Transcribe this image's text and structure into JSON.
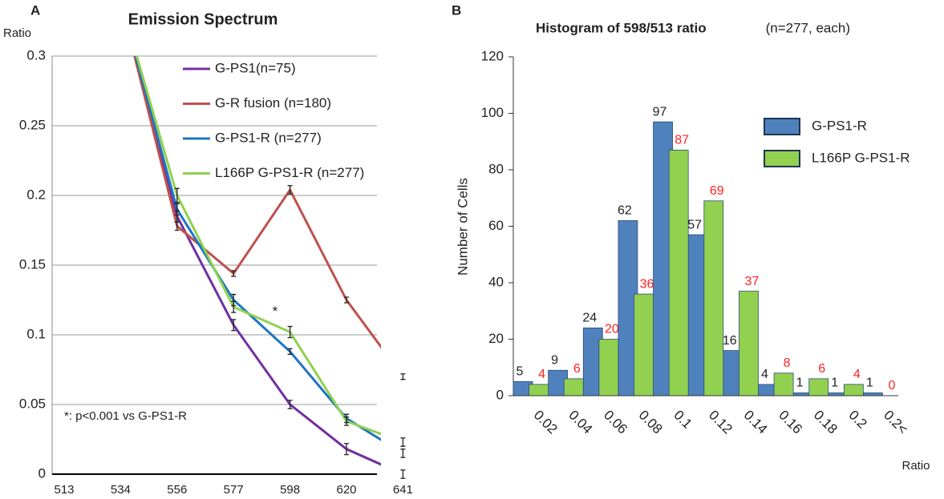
{
  "chart_data": [
    {
      "type": "line",
      "panel": "A",
      "title": "Emission Spectrum",
      "y_label": "Ratio",
      "categories": [
        "513",
        "534",
        "556",
        "577",
        "598",
        "620",
        "641"
      ],
      "ylim": [
        0,
        0.3
      ],
      "yticks": [
        0,
        0.05,
        0.1,
        0.15,
        0.2,
        0.25,
        0.3
      ],
      "grid": true,
      "legend": "upper right",
      "series": [
        {
          "name": "G-PS1(n=75)",
          "color": "#7030a0",
          "values": [
            null,
            0.34,
            0.185,
            0.107,
            0.05,
            0.018,
            0.0
          ],
          "errors": [
            null,
            null,
            0.004,
            0.004,
            0.003,
            0.004,
            0.003
          ]
        },
        {
          "name": "G-R fusion (n=180)",
          "color": "#c0504d",
          "values": [
            null,
            0.34,
            0.178,
            0.144,
            0.204,
            0.125,
            0.07
          ],
          "errors": [
            null,
            null,
            0.003,
            0.002,
            0.003,
            0.002,
            0.002
          ]
        },
        {
          "name": "G-PS1-R (n=277)",
          "color": "#1f74c4",
          "values": [
            null,
            0.34,
            0.19,
            0.125,
            0.088,
            0.04,
            0.015
          ],
          "errors": [
            null,
            null,
            0.004,
            0.004,
            0.002,
            0.003,
            0.003
          ]
        },
        {
          "name": "L166P G-PS1-R (n=277)",
          "color": "#8fd14f",
          "values": [
            null,
            0.34,
            0.2,
            0.12,
            0.102,
            0.038,
            0.023
          ],
          "errors": [
            null,
            null,
            0.005,
            0.004,
            0.004,
            0.003,
            0.003
          ]
        }
      ],
      "star": "*",
      "footnote": "*: p<0.001 vs G-PS1-R"
    },
    {
      "type": "bar",
      "panel": "B",
      "title": "Histogram of 598/513 ratio",
      "subtitle": "(n=277, each)",
      "y_label": "Number of Cells",
      "x_label": "Ratio",
      "categories": [
        "0.02",
        "0.04",
        "0.06",
        "0.08",
        "0.1",
        "0.12",
        "0.14",
        "0.16",
        "0.18",
        "0.2",
        "0.2<"
      ],
      "ylim": [
        0,
        120
      ],
      "yticks": [
        0,
        20,
        40,
        60,
        80,
        100,
        120
      ],
      "legend": "upper right",
      "series": [
        {
          "name": "G-PS1-R",
          "color": "#4f81bd",
          "label_color": "#222222",
          "values": [
            5,
            9,
            24,
            62,
            97,
            57,
            16,
            4,
            1,
            1,
            1
          ]
        },
        {
          "name": "L166P G-PS1-R",
          "color": "#92d050",
          "label_color": "#ff2020",
          "values": [
            4,
            6,
            20,
            36,
            87,
            69,
            37,
            8,
            6,
            4,
            0
          ]
        }
      ]
    }
  ]
}
